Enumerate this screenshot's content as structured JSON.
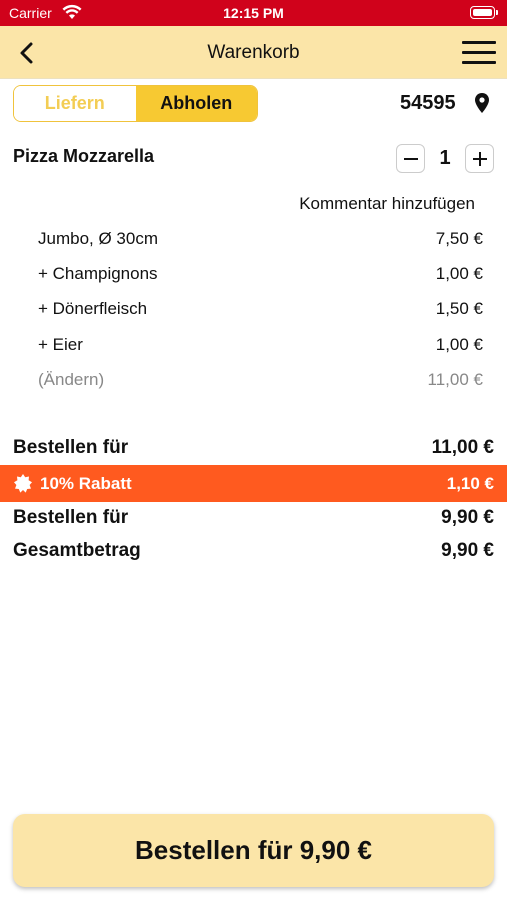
{
  "status_bar": {
    "carrier": "Carrier",
    "time": "12:15 PM"
  },
  "nav": {
    "title": "Warenkorb",
    "back_icon": "chevron-left",
    "menu_icon": "hamburger-menu"
  },
  "delivery_toggle": {
    "option_delivery": "Liefern",
    "option_pickup": "Abholen",
    "selected": "Abholen"
  },
  "location": {
    "zip": "54595",
    "icon": "map-pin"
  },
  "item": {
    "name": "Pizza Mozzarella",
    "quantity": "1",
    "comment_link": "Kommentar hinzufügen",
    "lines": [
      {
        "label": "Jumbo, Ø 30cm",
        "price": "7,50 €"
      },
      {
        "label": "+ Champignons",
        "price": "1,00 €"
      },
      {
        "label": "+ Dönerfleisch",
        "price": "1,50 €"
      },
      {
        "label": "+ Eier",
        "price": "1,00 €"
      }
    ],
    "edit": {
      "label": "(Ändern)",
      "price": "11,00 €"
    }
  },
  "summary": {
    "subtotal": {
      "label": "Bestellen für",
      "value": "11,00 €"
    },
    "discount": {
      "label": "10% Rabatt",
      "value": "1,10 €"
    },
    "after_discount": {
      "label": "Bestellen für",
      "value": "9,90 €"
    },
    "total": {
      "label": "Gesamtbetrag",
      "value": "9,90 €"
    }
  },
  "order_button": {
    "label": "Bestellen für 9,90 €"
  },
  "colors": {
    "status_bar": "#d0021b",
    "nav_bar": "#fbe5a8",
    "accent": "#f7c932",
    "discount": "#ff5a1f"
  }
}
